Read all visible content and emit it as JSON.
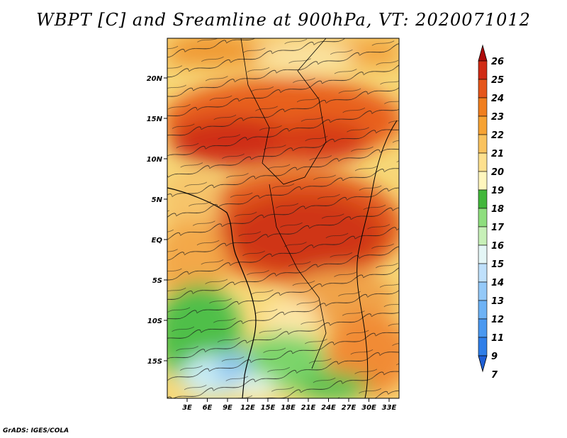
{
  "title": "WBPT [C] and Sreamline at 900hPa, VT: 2020071012",
  "credit": "GrADS: IGES/COLA",
  "map": {
    "region": "Central Africa",
    "lon_range": [
      0,
      35
    ],
    "lat_range": [
      -20,
      25
    ],
    "lon_ticks": [
      "3E",
      "6E",
      "9E",
      "12E",
      "15E",
      "18E",
      "21E",
      "24E",
      "27E",
      "30E",
      "33E"
    ],
    "lat_ticks": [
      "20N",
      "15N",
      "10N",
      "5N",
      "EQ",
      "5S",
      "10S",
      "15S"
    ]
  },
  "legend": {
    "units": "C",
    "levels": [
      "7",
      "9",
      "11",
      "12",
      "13",
      "14",
      "15",
      "16",
      "17",
      "18",
      "19",
      "20",
      "21",
      "22",
      "23",
      "24",
      "25",
      "26"
    ],
    "colors": [
      "#1f5fd6",
      "#2f7ee8",
      "#4a98f0",
      "#6db2f5",
      "#94c9f8",
      "#bfe0fb",
      "#e4f6f6",
      "#c7f0b8",
      "#8ede7e",
      "#42b73b",
      "#fff6bd",
      "#fde08e",
      "#f9c25e",
      "#f6a233",
      "#f07e1e",
      "#e5551a",
      "#d02b15",
      "#ad0a0a"
    ]
  }
}
